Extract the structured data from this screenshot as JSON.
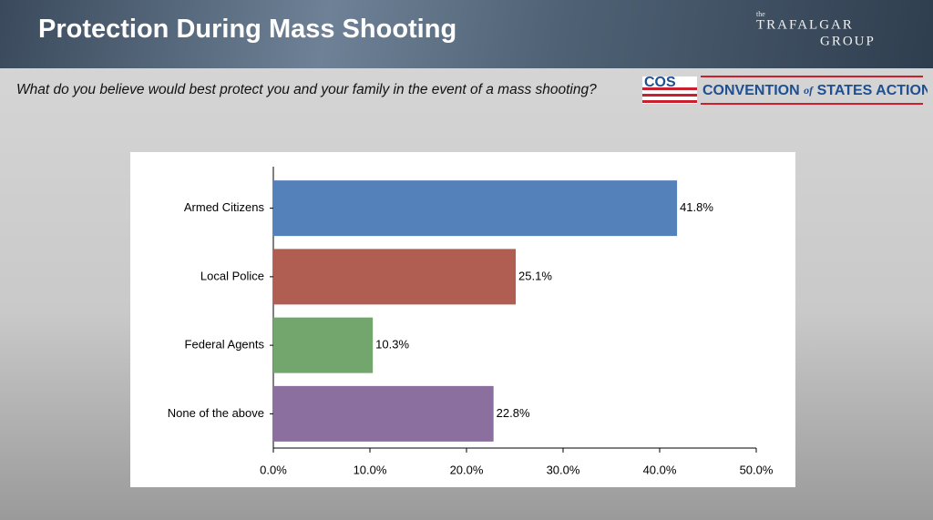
{
  "header": {
    "title": "Protection During Mass Shooting"
  },
  "question": "What do you believe would best protect you and your family in the event of a mass shooting?",
  "logos": {
    "trafalgar": {
      "small": "the",
      "name": "TRAFALGAR",
      "group": "GROUP"
    },
    "cos": {
      "mark": "COS",
      "part1": "CONVENTION",
      "part2": "of",
      "part3": "STATES ACTION"
    }
  },
  "chart_data": {
    "type": "hbar",
    "categories": [
      "Armed Citizens",
      "Local Police",
      "Federal Agents",
      "None of the above"
    ],
    "values": [
      41.8,
      25.1,
      10.3,
      22.8
    ],
    "value_labels": [
      "41.8%",
      "25.1%",
      "10.3%",
      "22.8%"
    ],
    "colors": [
      "#5581bb",
      "#b05d52",
      "#72a66d",
      "#8b6f9e"
    ],
    "xlim": [
      0,
      50
    ],
    "xticks": [
      {
        "value": 0,
        "label": "0.0%"
      },
      {
        "value": 10,
        "label": "10.0%"
      },
      {
        "value": 20,
        "label": "20.0%"
      },
      {
        "value": 30,
        "label": "30.0%"
      },
      {
        "value": 40,
        "label": "40.0%"
      },
      {
        "value": 50,
        "label": "50.0%"
      }
    ]
  }
}
